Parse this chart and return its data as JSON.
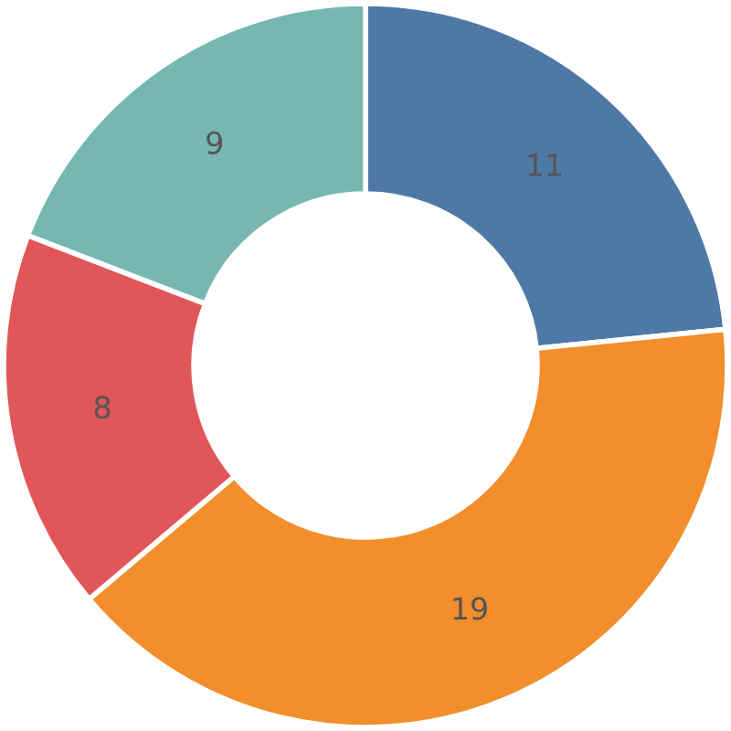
{
  "chart_data": {
    "type": "donut",
    "categories": [
      null,
      null,
      null,
      null
    ],
    "values": [
      11,
      19,
      8,
      9
    ],
    "colors": [
      "#4e79a7",
      "#f28e2b",
      "#e15759",
      "#76b7b2"
    ],
    "data_labels": true
  }
}
